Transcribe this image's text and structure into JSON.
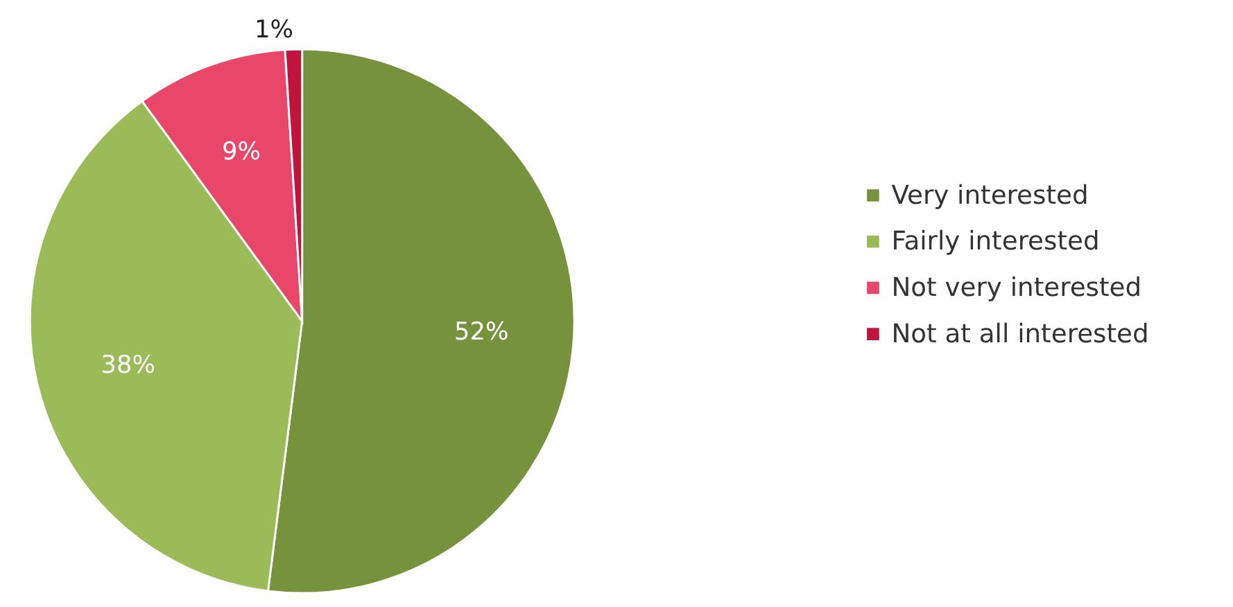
{
  "chart_data": {
    "type": "pie",
    "categories": [
      "Very interested",
      "Fairly interested",
      "Not very interested",
      "Not at all interested"
    ],
    "values": [
      52,
      38,
      9,
      1
    ],
    "colors": [
      "#76923c",
      "#9bbb59",
      "#e8476a",
      "#c0143c"
    ],
    "value_labels": [
      "52%",
      "38%",
      "9%",
      "1%"
    ],
    "legend": "right"
  }
}
